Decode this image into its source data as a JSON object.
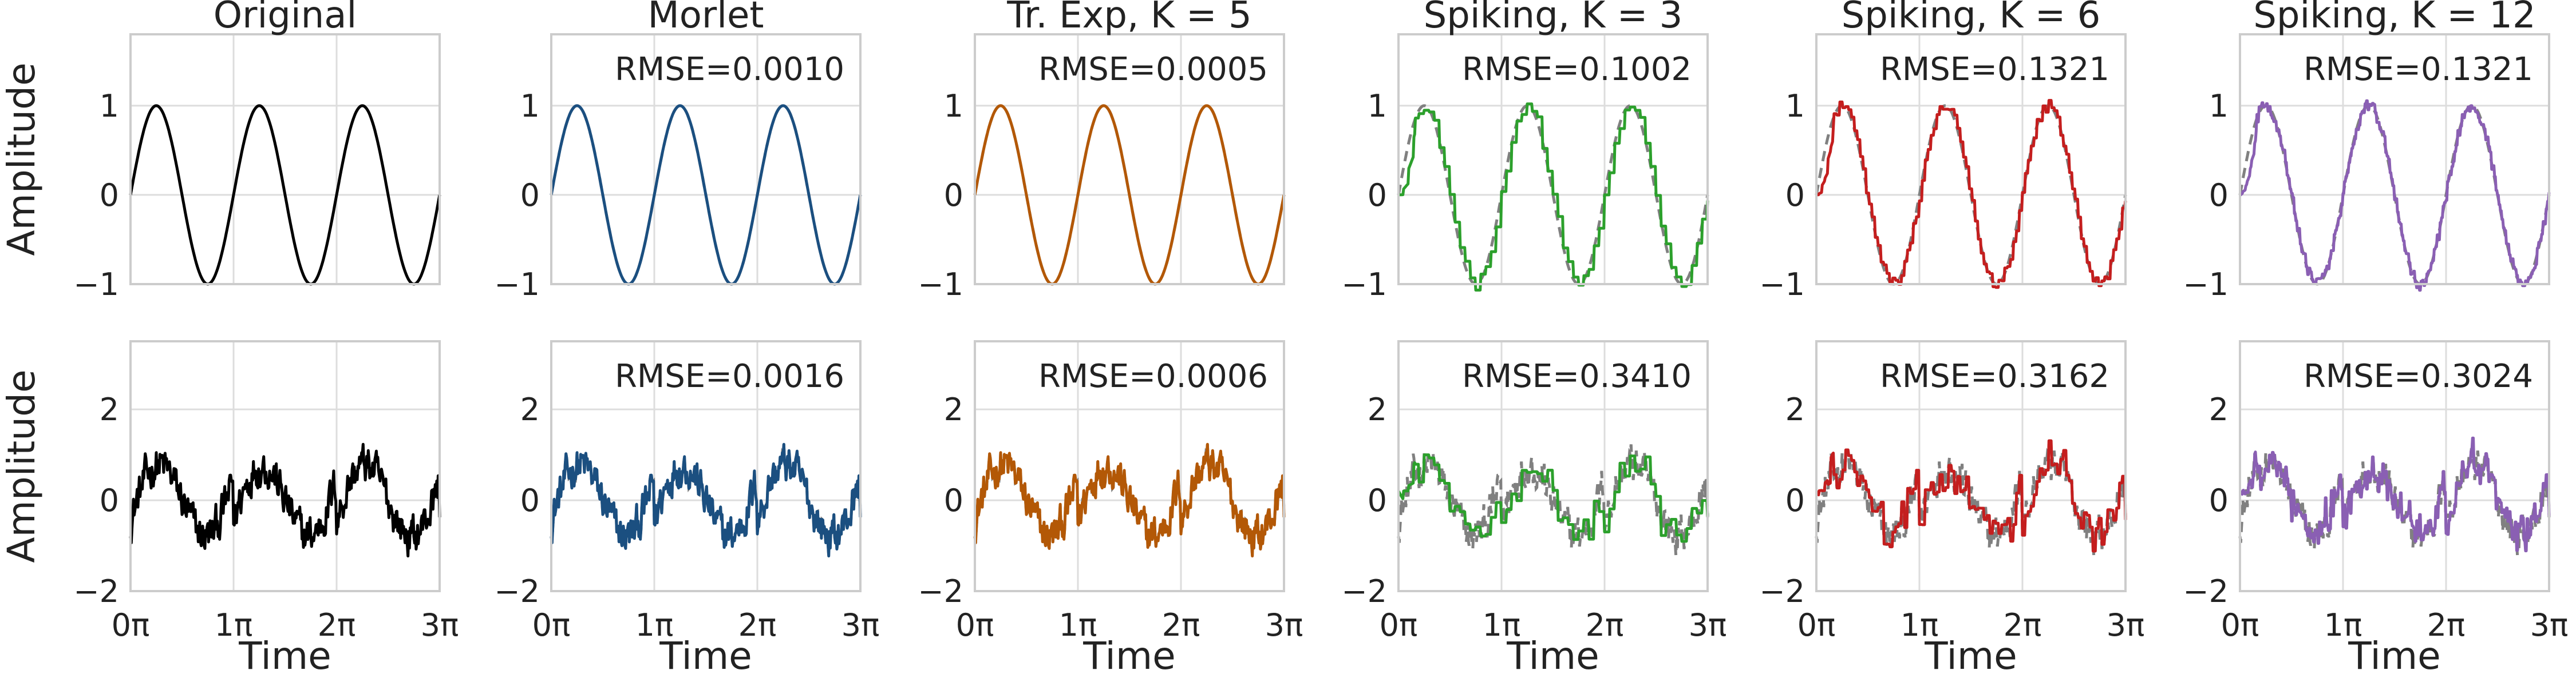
{
  "chart_data": {
    "type": "line",
    "column_titles": [
      "Original",
      "Morlet",
      "Tr. Exp, K = 5",
      "Spiking, K = 3",
      "Spiking, K = 6",
      "Spiking, K = 12"
    ],
    "ylabel": "Amplitude",
    "xlabel": "Time",
    "x_ticks": [
      "0π",
      "1π",
      "2π",
      "3π"
    ],
    "xlim": [
      0,
      9.4248
    ],
    "rows": [
      {
        "name": "sine",
        "ylim": [
          -1,
          1.8
        ],
        "y_ticks": [
          -1,
          0,
          1
        ],
        "signal": "sin(2x)",
        "rmse": [
          "",
          "RMSE=0.0010",
          "RMSE=0.0005",
          "RMSE=0.1002",
          "RMSE=0.1321",
          "RMSE=0.1321"
        ]
      },
      {
        "name": "noisy",
        "ylim": [
          -2,
          3.5
        ],
        "y_ticks": [
          -2,
          0,
          2
        ],
        "signal": "sin(2x) + 0.5*sawtooth + noise",
        "rmse": [
          "",
          "RMSE=0.0016",
          "RMSE=0.0006",
          "RMSE=0.3410",
          "RMSE=0.3162",
          "RMSE=0.3024"
        ]
      }
    ],
    "colors": [
      "#000000",
      "#1b4f80",
      "#b35806",
      "#2ca02c",
      "#c41e1e",
      "#8a5fb3"
    ],
    "reference_color": "#808080"
  }
}
